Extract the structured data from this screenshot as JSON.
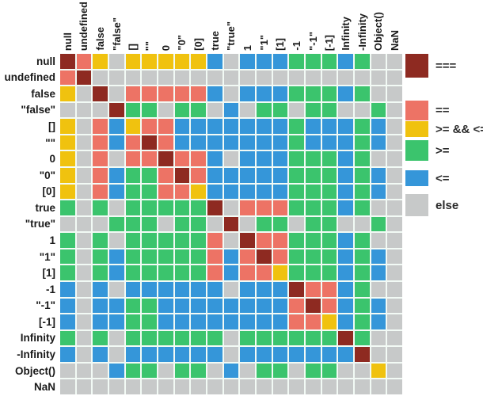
{
  "chart_data": {
    "type": "heatmap",
    "row_labels": [
      "null",
      "undefined",
      "false",
      "\"false\"",
      "[]",
      "\"\"",
      "0",
      "\"0\"",
      "[0]",
      "true",
      "\"true\"",
      "1",
      "\"1\"",
      "[1]",
      "-1",
      "\"-1\"",
      "[-1]",
      "Infinity",
      "-Infinity",
      "Object()",
      "NaN"
    ],
    "col_labels": [
      "null",
      "undefined",
      "false",
      "\"false\"",
      "[]",
      "\"\"",
      "0",
      "\"0\"",
      "[0]",
      "true",
      "\"true\"",
      "1",
      "\"1\"",
      "[1]",
      "-1",
      "\"-1\"",
      "[-1]",
      "Infinity",
      "-Infinity",
      "Object()",
      "NaN"
    ],
    "legend": [
      {
        "key": "s",
        "label": "===",
        "color": "#8e2a21"
      },
      {
        "key": "e",
        "label": "==",
        "color": "#ed7365"
      },
      {
        "key": "b",
        "label": ">= && <=",
        "color": "#f0c20f"
      },
      {
        "key": "g",
        "label": ">=",
        "color": "#3bc46d"
      },
      {
        "key": "l",
        "label": "<=",
        "color": "#3596d9"
      },
      {
        "key": "x",
        "label": "else",
        "color": "#c7c9c9"
      }
    ],
    "legend_position": "right",
    "matrix": [
      "sebxbbbbblxlllggglgxx",
      "esxxxxxxxxxxxxxxxxxxx",
      "bxsxeeeeelxlllggglgxx",
      "xxxsggxggxlxggxggxxgx",
      "bxelbeelllllllglllglx",
      "bxeleselllllllglllglx",
      "bxexeeseelxlllggglgxx",
      "bxelggeselllllggglglx",
      "bxelggeeblllllggglglx",
      "gxgxgggggsxeeeggglgxx",
      "xxxgggxggxsxggxggxxgx",
      "gxgxgggggexseeggglgxx",
      "gxglgggggeleseggglglx",
      "gxglgggggeleebggglglx",
      "lxlxllllllxlllseelgxx",
      "lxllgglllllllleselglx",
      "lxllgglllllllleeblglx",
      "gxgxggggggxggggggsgxx",
      "lxlxllllllxlllllllsxx",
      "xxxlggxggxlxggxggxxbx",
      "xxxxxxxxxxxxxxxxxxxxx"
    ]
  }
}
